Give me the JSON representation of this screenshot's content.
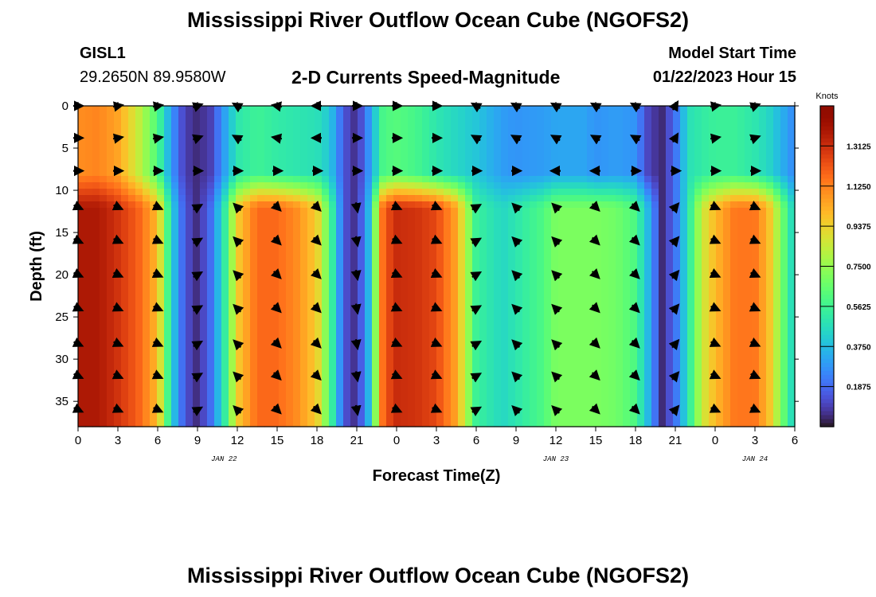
{
  "page": {
    "title": "Mississippi River Outflow Ocean Cube (NGOFS2)",
    "station_id": "GISL1",
    "coordinates": "29.2650N  89.9580W",
    "subtitle": "2-D Currents Speed-Magnitude",
    "model_start_label": "Model Start Time",
    "model_start_value": "01/22/2023 Hour 15",
    "footer_title": "Mississippi River Outflow Ocean Cube (NGOFS2)"
  },
  "chart_data": {
    "type": "heatmap",
    "xlabel": "Forecast Time(Z)",
    "ylabel": "Depth (ft)",
    "x_range_hours": [
      0,
      54
    ],
    "x_ticks": [
      "0",
      "3",
      "6",
      "9",
      "12",
      "15",
      "18",
      "21",
      "0",
      "3",
      "6",
      "9",
      "12",
      "15",
      "18",
      "21",
      "0",
      "3",
      "6"
    ],
    "date_labels": [
      {
        "label": "JAN 22",
        "at_hour": 11
      },
      {
        "label": "JAN 23",
        "at_hour": 36
      },
      {
        "label": "JAN 24",
        "at_hour": 51
      }
    ],
    "y_ticks": [
      0,
      5,
      10,
      15,
      20,
      25,
      30,
      35
    ],
    "ylim": [
      0,
      38
    ],
    "y_inverted": true,
    "colorbar": {
      "unit": "Knots",
      "range": [
        0,
        1.5
      ],
      "tick_values": [
        0.1875,
        0.375,
        0.5625,
        0.75,
        0.9375,
        1.125,
        1.3125
      ],
      "tick_labels": [
        "0.1875",
        "0.3750",
        "0.5625",
        "0.7500",
        "0.9375",
        "1.1250",
        "1.3125"
      ],
      "colormap": "turbo"
    },
    "speed_profile_knots": {
      "hours": [
        0,
        1.5,
        3,
        4.5,
        6,
        7,
        8,
        9,
        10,
        11,
        12,
        13.5,
        15,
        16.5,
        18,
        19,
        20,
        21,
        22,
        23,
        24,
        25.5,
        27,
        28.5,
        30,
        32,
        33,
        35,
        36,
        38,
        39,
        40.5,
        42,
        43,
        44,
        45,
        46,
        47,
        48,
        49.5,
        51,
        52,
        53,
        54
      ],
      "surface_0_to_8ft": [
        1.1,
        1.12,
        1.05,
        0.85,
        0.6,
        0.3,
        0.1,
        0.05,
        0.1,
        0.3,
        0.5,
        0.56,
        0.52,
        0.5,
        0.48,
        0.4,
        0.15,
        0.05,
        0.3,
        0.6,
        0.62,
        0.58,
        0.5,
        0.45,
        0.4,
        0.3,
        0.28,
        0.3,
        0.32,
        0.32,
        0.28,
        0.3,
        0.28,
        0.1,
        0.05,
        0.2,
        0.48,
        0.52,
        0.55,
        0.55,
        0.5,
        0.45,
        0.35,
        0.25
      ],
      "bottom_12_to_38ft": [
        1.38,
        1.38,
        1.3,
        1.2,
        1.0,
        0.45,
        0.15,
        0.05,
        0.2,
        0.5,
        0.95,
        1.18,
        1.18,
        1.1,
        0.95,
        0.6,
        0.15,
        0.05,
        0.4,
        1.2,
        1.32,
        1.3,
        1.25,
        1.05,
        0.55,
        0.45,
        0.5,
        0.6,
        0.7,
        0.7,
        0.7,
        0.68,
        0.6,
        0.35,
        0.05,
        0.2,
        0.5,
        0.85,
        1.0,
        1.15,
        1.15,
        1.0,
        0.7,
        0.4
      ]
    },
    "arrow_rows_ft": [
      0,
      3.8,
      7.7,
      12,
      16,
      20,
      24,
      28.2,
      32,
      36
    ],
    "arrow_hours": [
      0,
      3,
      6,
      9,
      12,
      15,
      18,
      21,
      24,
      27,
      30,
      33,
      36,
      39,
      42,
      45,
      48,
      51
    ],
    "flow_direction_deg": {
      "surface": [
        90,
        80,
        80,
        70,
        300,
        280,
        270,
        90,
        90,
        90,
        300,
        300,
        300,
        300,
        300,
        30,
        80,
        70
      ],
      "mid": [
        90,
        90,
        90,
        90,
        90,
        90,
        90,
        90,
        90,
        90,
        90,
        90,
        270,
        270,
        90,
        90,
        90,
        90
      ],
      "bottom": [
        115,
        115,
        115,
        60,
        315,
        135,
        135,
        170,
        115,
        115,
        60,
        315,
        315,
        135,
        135,
        40,
        115,
        115
      ]
    }
  }
}
